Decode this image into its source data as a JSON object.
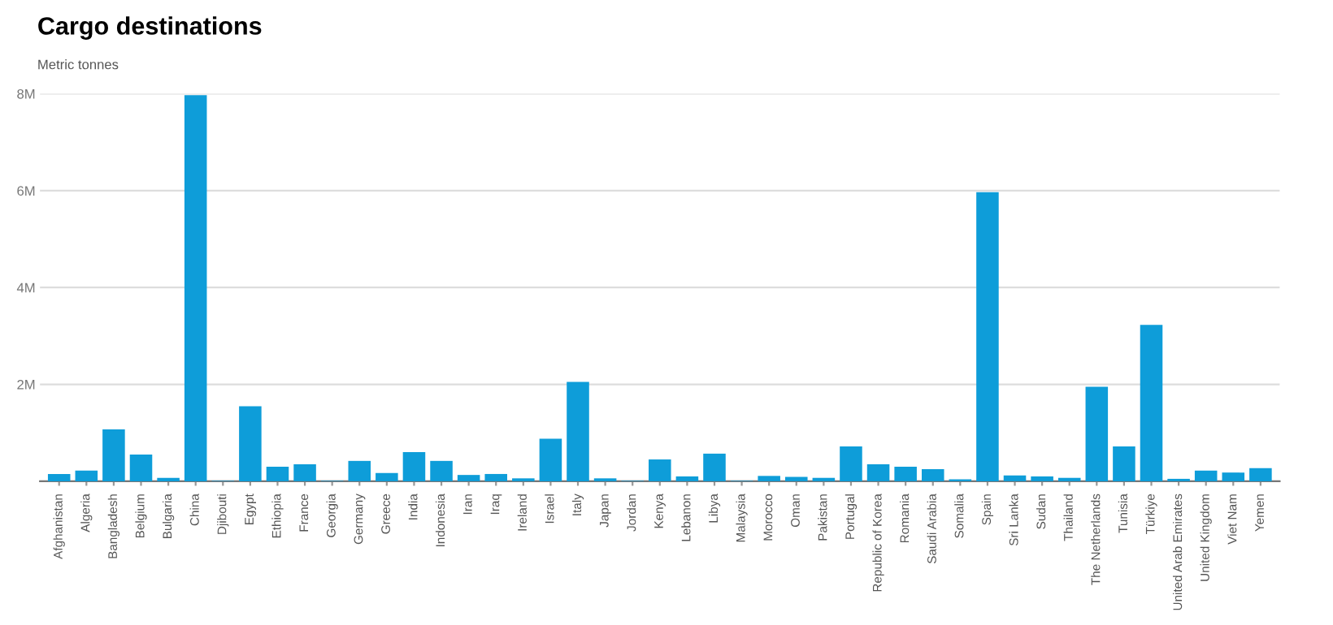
{
  "chart_data": {
    "type": "bar",
    "title": "Cargo destinations",
    "ylabel": "Metric tonnes",
    "categories": [
      "Afghanistan",
      "Algeria",
      "Bangladesh",
      "Belgium",
      "Bulgaria",
      "China",
      "Djibouti",
      "Egypt",
      "Ethiopia",
      "France",
      "Georgia",
      "Germany",
      "Greece",
      "India",
      "Indonesia",
      "Iran",
      "Iraq",
      "Ireland",
      "Israel",
      "Italy",
      "Japan",
      "Jordan",
      "Kenya",
      "Lebanon",
      "Libya",
      "Malaysia",
      "Morocco",
      "Oman",
      "Pakistan",
      "Portugal",
      "Republic of Korea",
      "Romania",
      "Saudi Arabia",
      "Somalia",
      "Spain",
      "Sri Lanka",
      "Sudan",
      "Thailand",
      "The Netherlands",
      "Tunisia",
      "Türkiye",
      "United Arab Emirates",
      "United Kingdom",
      "Viet Nam",
      "Yemen"
    ],
    "values": [
      150000,
      220000,
      1070000,
      550000,
      70000,
      7970000,
      10000,
      1550000,
      300000,
      350000,
      10000,
      420000,
      170000,
      600000,
      420000,
      130000,
      150000,
      60000,
      880000,
      2050000,
      60000,
      10000,
      450000,
      100000,
      570000,
      10000,
      110000,
      90000,
      70000,
      720000,
      350000,
      300000,
      250000,
      40000,
      5970000,
      120000,
      100000,
      70000,
      1950000,
      720000,
      3230000,
      50000,
      220000,
      180000,
      270000
    ],
    "color": "#0e9dd9",
    "ylim": [
      0,
      8000000
    ],
    "yticks": [
      {
        "value": 0,
        "label": null
      },
      {
        "value": 2000000,
        "label": "2M"
      },
      {
        "value": 4000000,
        "label": "4M"
      },
      {
        "value": 6000000,
        "label": "6M"
      },
      {
        "value": 8000000,
        "label": "8M"
      }
    ],
    "grid": "y"
  }
}
